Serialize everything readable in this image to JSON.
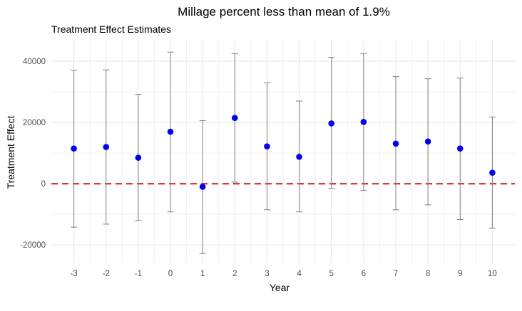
{
  "chart_data": {
    "type": "scatter",
    "title": "Millage percent less than mean of 1.9%",
    "subtitle": "Treatment Effect Estimates",
    "xlabel": "Year",
    "ylabel": "Treatment Effect",
    "x_ticks": [
      -3,
      -2,
      -1,
      0,
      1,
      2,
      3,
      4,
      5,
      6,
      7,
      8,
      9,
      10
    ],
    "y_ticks": [
      -20000,
      0,
      20000,
      40000
    ],
    "y_tick_labels": [
      "-20000",
      "0",
      "20000",
      "40000"
    ],
    "xlim": [
      -3.7,
      10.7
    ],
    "ylim": [
      -26000,
      47000
    ],
    "grid": true,
    "reference_line": {
      "y": 0,
      "style": "dashed",
      "color": "#d62728"
    },
    "point_color": "#0000ee",
    "errorbar_color": "#7f7f7f",
    "points": [
      {
        "x": -3,
        "y": 11500,
        "lower": -14200,
        "upper": 37000
      },
      {
        "x": -2,
        "y": 12000,
        "lower": -13200,
        "upper": 37200
      },
      {
        "x": -1,
        "y": 8500,
        "lower": -12000,
        "upper": 29200
      },
      {
        "x": 0,
        "y": 17000,
        "lower": -9200,
        "upper": 43000
      },
      {
        "x": 1,
        "y": -1000,
        "lower": -22800,
        "upper": 20600
      },
      {
        "x": 2,
        "y": 21500,
        "lower": 500,
        "upper": 42500
      },
      {
        "x": 3,
        "y": 12200,
        "lower": -8500,
        "upper": 33000
      },
      {
        "x": 4,
        "y": 8800,
        "lower": -9200,
        "upper": 27000
      },
      {
        "x": 5,
        "y": 19700,
        "lower": -1500,
        "upper": 41300
      },
      {
        "x": 6,
        "y": 20200,
        "lower": -2200,
        "upper": 42500
      },
      {
        "x": 7,
        "y": 13100,
        "lower": -8500,
        "upper": 35000
      },
      {
        "x": 8,
        "y": 13800,
        "lower": -6900,
        "upper": 34300
      },
      {
        "x": 9,
        "y": 11500,
        "lower": -11700,
        "upper": 34500
      },
      {
        "x": 10,
        "y": 3600,
        "lower": -14500,
        "upper": 21800
      }
    ]
  }
}
